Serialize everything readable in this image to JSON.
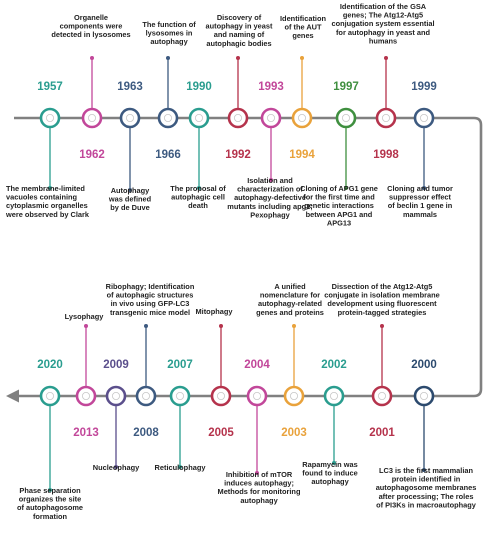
{
  "colors": {
    "line": "#808080",
    "teal": "#2a9d8f",
    "magenta": "#c2479a",
    "navy": "#3d5a80",
    "crimson": "#b5334c",
    "orange": "#e9a23b",
    "green": "#3f8f3f",
    "purple": "#5b4f8c",
    "darknavy": "#2c4a6e"
  },
  "events": [
    {
      "year": "1957",
      "color": "teal",
      "lines": [
        "The membrane-limited",
        "vacuoles containing",
        "cytoplasmic organelles",
        "were observed by Clark"
      ]
    },
    {
      "year": "1962",
      "color": "magenta",
      "lines": [
        "Organelle",
        "components were",
        "detected in lysosomes"
      ]
    },
    {
      "year": "1963",
      "color": "navy",
      "lines": [
        "Autophagy",
        "was defined",
        "by de Duve"
      ]
    },
    {
      "year": "1966",
      "color": "navy",
      "lines": [
        "The function of",
        "lysosomes in",
        "autophagy"
      ]
    },
    {
      "year": "1990",
      "color": "teal",
      "lines": [
        "The proposal of",
        "autophagic cell",
        "death"
      ]
    },
    {
      "year": "1992",
      "color": "crimson",
      "lines": [
        "Discovery of",
        "autophagy in yeast",
        "and naming of",
        "autophagic bodies"
      ]
    },
    {
      "year": "1993",
      "color": "magenta",
      "lines": [
        "Isolation and",
        "characterization of",
        "autophagy-defective",
        "mutants including apg1;",
        "Pexophagy"
      ]
    },
    {
      "year": "1994",
      "color": "orange",
      "lines": [
        "Identification",
        "of the AUT",
        "genes"
      ]
    },
    {
      "year": "1997",
      "color": "green",
      "lines": [
        "Cloning  of APG1 gene",
        "for the first time and",
        "genetic interactions",
        "between APG1 and",
        "APG13"
      ]
    },
    {
      "year": "1998",
      "color": "crimson",
      "lines": [
        "Identification of the GSA",
        "genes; The Atg12-Atg5",
        "conjugation system essential",
        "for autophagy in yeast and",
        "humans"
      ]
    },
    {
      "year": "1999",
      "color": "navy",
      "lines": [
        "Cloning and tumor",
        "suppressor effect",
        "of beclin 1 gene in",
        "mammals"
      ]
    },
    {
      "year": "2000",
      "color": "darknavy",
      "lines": [
        "LC3 is the first mammalian",
        "protein identified in",
        "autophagosome membranes",
        "after processing; The roles",
        "of PI3Ks in macroautophagy"
      ]
    },
    {
      "year": "2001",
      "color": "crimson",
      "lines": [
        "Dissection of the Atg12-Atg5",
        "conjugate in isolation membrane",
        "development using fluorescent",
        "protein-tagged strategies"
      ]
    },
    {
      "year": "2002",
      "color": "teal",
      "lines": [
        "Rapamycin was",
        "found to induce",
        "autophagy"
      ]
    },
    {
      "year": "2003",
      "color": "orange",
      "lines": [
        "A unified",
        "nomenclature for",
        "autophagy-related",
        "genes and proteins"
      ]
    },
    {
      "year": "2004",
      "color": "magenta",
      "lines": [
        "Inhibition of mTOR",
        "induces autophagy;",
        "Methods for monitoring",
        "autophagy"
      ]
    },
    {
      "year": "2005",
      "color": "crimson",
      "lines": [
        "Mitophagy"
      ]
    },
    {
      "year": "2007",
      "color": "teal",
      "lines": [
        "Reticulophagy"
      ]
    },
    {
      "year": "2008",
      "color": "navy",
      "lines": [
        "Ribophagy; Identification",
        "of autophagic structures",
        "in vivo using GFP-LC3",
        "transgenic mice model"
      ]
    },
    {
      "year": "2009",
      "color": "purple",
      "lines": [
        "Nucleophagy"
      ]
    },
    {
      "year": "2013",
      "color": "magenta",
      "lines": [
        "Lysophagy"
      ]
    },
    {
      "year": "2020",
      "color": "teal",
      "lines": [
        "Phase separation",
        "organizes the site",
        "of autophagosome",
        "formation"
      ]
    }
  ]
}
